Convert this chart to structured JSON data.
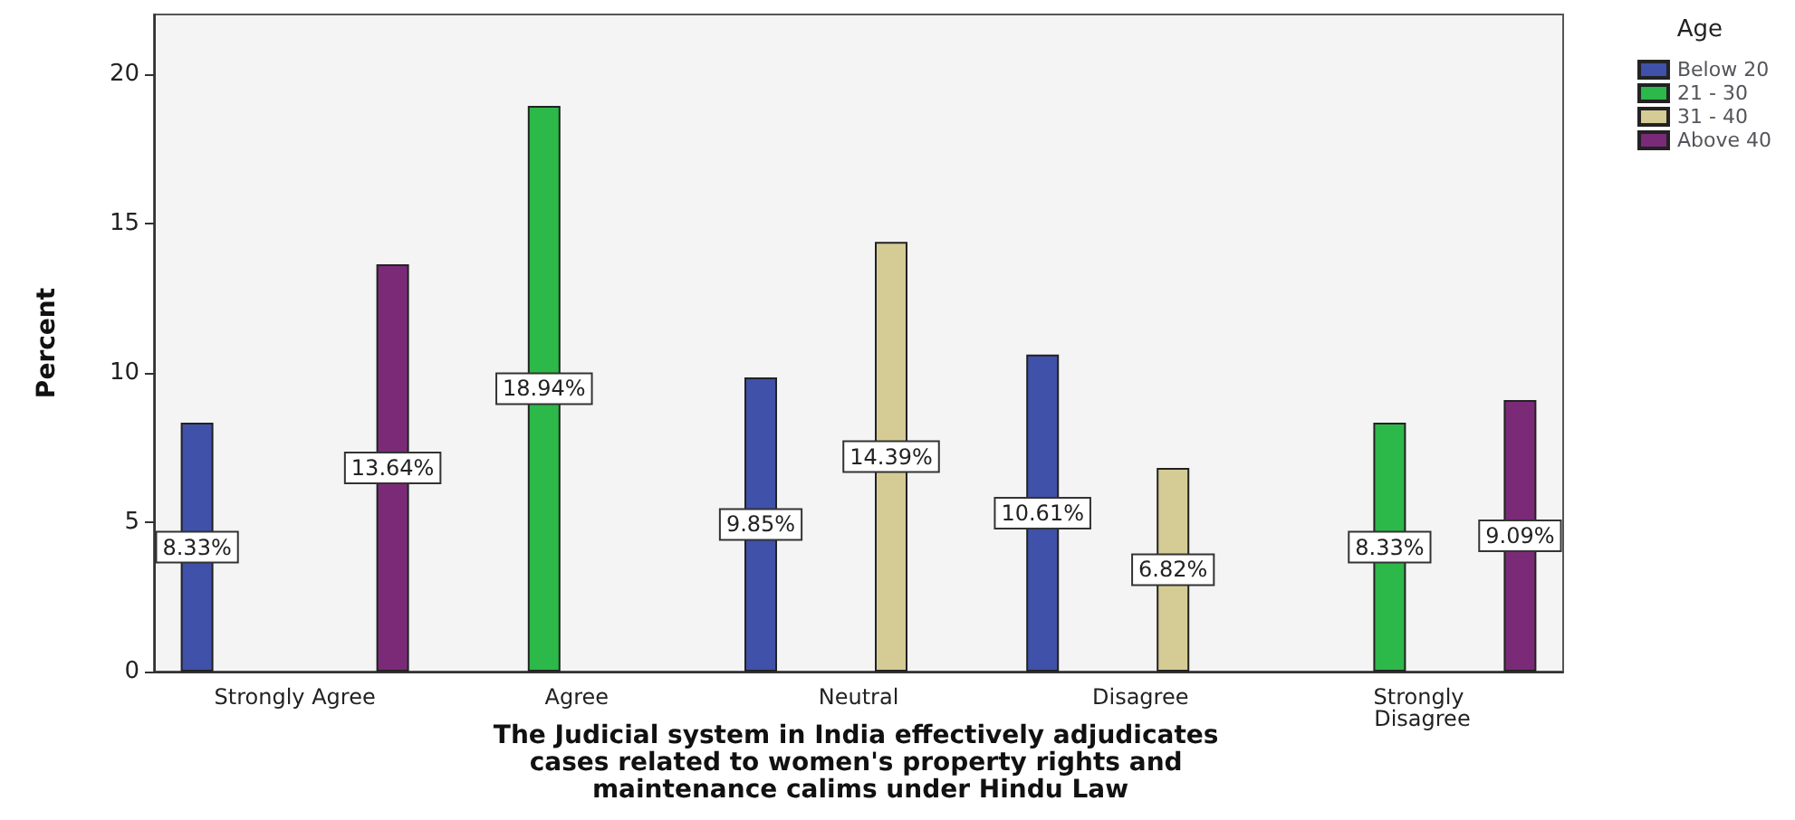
{
  "chart_data": {
    "type": "bar",
    "xlabel": "The Judicial system in India effectively adjudicates cases related to women's property rights and maintenance calims under Hindu Law",
    "ylabel": "Percent",
    "legend_title": "Age",
    "legend": "right",
    "grid": false,
    "categories": [
      "Strongly Agree",
      "Agree",
      "Neutral",
      "Disagree",
      "Strongly Disagree"
    ],
    "ylim": [
      0,
      22
    ],
    "yticks": [
      0,
      5,
      10,
      15,
      20
    ],
    "series": [
      {
        "name": "Below 20",
        "color": "#3f51a8",
        "values": [
          8.33,
          null,
          9.85,
          10.61,
          null
        ],
        "value_labels": [
          "8.33%",
          null,
          "9.85%",
          "10.61%",
          null
        ]
      },
      {
        "name": "21 - 30",
        "color": "#2db84a",
        "values": [
          null,
          18.94,
          null,
          null,
          8.33
        ],
        "value_labels": [
          null,
          "18.94%",
          null,
          null,
          "8.33%"
        ]
      },
      {
        "name": "31 - 40",
        "color": "#d4cc94",
        "values": [
          null,
          null,
          14.39,
          6.82,
          null
        ],
        "value_labels": [
          null,
          null,
          "14.39%",
          "6.82%",
          null
        ]
      },
      {
        "name": "Above 40",
        "color": "#7b2a78",
        "values": [
          13.64,
          null,
          null,
          null,
          9.09
        ],
        "value_labels": [
          "13.64%",
          null,
          null,
          null,
          "9.09%"
        ]
      }
    ]
  }
}
